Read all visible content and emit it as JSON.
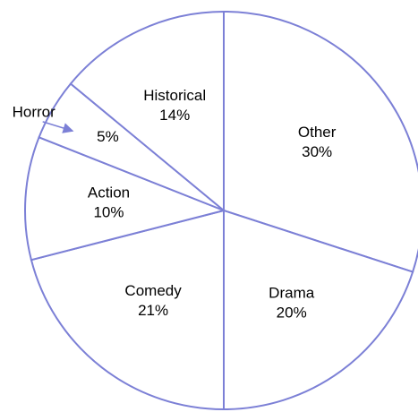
{
  "chart_data": {
    "type": "pie",
    "categories": [
      "Other",
      "Drama",
      "Comedy",
      "Action",
      "Horror",
      "Historical"
    ],
    "values": [
      30,
      20,
      21,
      10,
      5,
      14
    ],
    "value_labels": [
      "30%",
      "20%",
      "21%",
      "10%",
      "5%",
      "14%"
    ],
    "color": "#7c80d6"
  }
}
